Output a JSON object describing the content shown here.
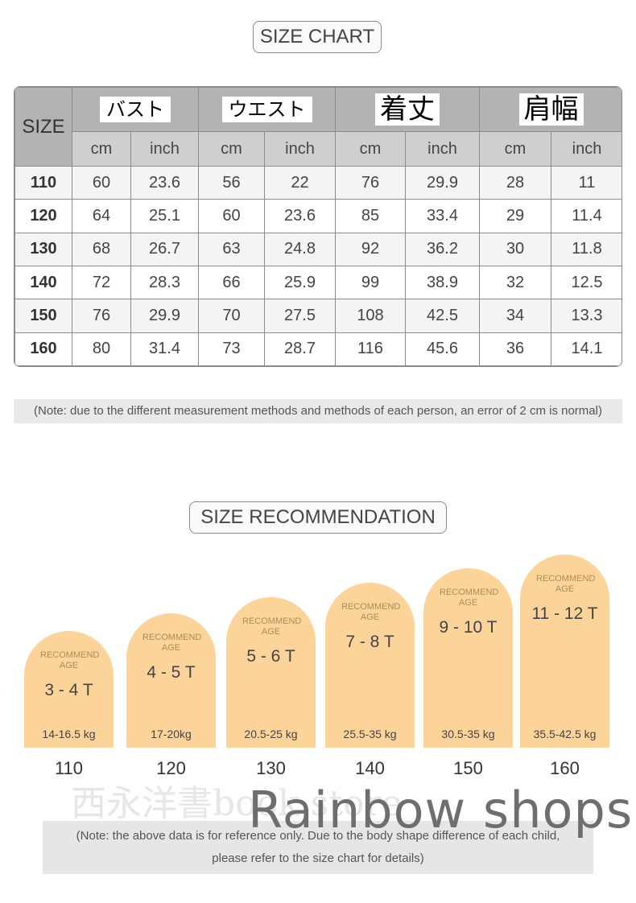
{
  "size_chart": {
    "title": "SIZE CHART",
    "size_header": "SIZE",
    "groups": [
      {
        "label": "バスト"
      },
      {
        "label": "ウエスト"
      },
      {
        "label": "着丈"
      },
      {
        "label": "肩幅"
      }
    ],
    "units": [
      "cm",
      "inch",
      "cm",
      "inch",
      "cm",
      "inch",
      "cm",
      "inch"
    ],
    "rows": [
      [
        "110",
        "60",
        "23.6",
        "56",
        "22",
        "76",
        "29.9",
        "28",
        "11"
      ],
      [
        "120",
        "64",
        "25.1",
        "60",
        "23.6",
        "85",
        "33.4",
        "29",
        "11.4"
      ],
      [
        "130",
        "68",
        "26.7",
        "63",
        "24.8",
        "92",
        "36.2",
        "30",
        "11.8"
      ],
      [
        "140",
        "72",
        "28.3",
        "66",
        "25.9",
        "99",
        "38.9",
        "32",
        "12.5"
      ],
      [
        "150",
        "76",
        "29.9",
        "70",
        "27.5",
        "108",
        "42.5",
        "34",
        "13.3"
      ],
      [
        "160",
        "80",
        "31.4",
        "73",
        "28.7",
        "116",
        "45.6",
        "36",
        "14.1"
      ]
    ]
  },
  "note1": "(Note: due to the different measurement methods and methods of each person, an error of 2 cm is normal)",
  "recommendation": {
    "title": "SIZE RECOMMENDATION",
    "items": [
      {
        "rec": "RECOMMEND AGE",
        "age": "3 - 4 T",
        "weight": "14-16.5 kg",
        "size": "110"
      },
      {
        "rec": "RECOMMEND AGE",
        "age": "4 - 5 T",
        "weight": "17-20kg",
        "size": "120"
      },
      {
        "rec": "RECOMMEND AGE",
        "age": "5 - 6 T",
        "weight": "20.5-25 kg",
        "size": "130"
      },
      {
        "rec": "RECOMMEND AGE",
        "age": "7 - 8 T",
        "weight": "25.5-35 kg",
        "size": "140"
      },
      {
        "rec": "RECOMMEND AGE",
        "age": "9 - 10 T",
        "weight": "30.5-35 kg",
        "size": "150"
      },
      {
        "rec": "RECOMMEND AGE",
        "age": "11 - 12 T",
        "weight": "35.5-42.5 kg",
        "size": "160"
      }
    ]
  },
  "watermark_cn": "西永洋書book store",
  "watermark_shop": "Rainbow shops",
  "note2": {
    "line1": "(Note: the above data is for reference only. Due to the body shape difference of each child,",
    "line2": "please refer to the size chart for details)"
  },
  "colors": {
    "arch_fill": "#fcd49a",
    "header_gray": "#b3b3b3",
    "subheader_gray": "#cfcfcf"
  }
}
